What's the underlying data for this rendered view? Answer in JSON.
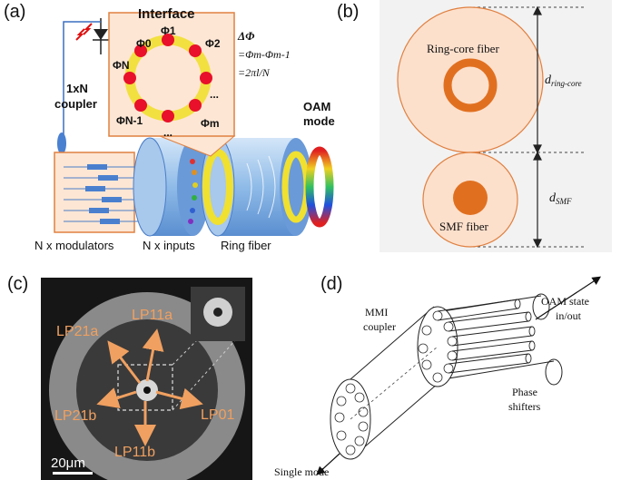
{
  "panels": {
    "a": {
      "label": "(a)",
      "interface_title": "Interface",
      "phases": [
        "Φ0",
        "Φ1",
        "Φ2",
        "ΦN",
        "Φm",
        "ΦN-1"
      ],
      "dots_top": "...",
      "dots_bottom": "...",
      "dots_right": "...",
      "equation_lines": [
        "ΔΦ",
        "=Φm-Φm-1",
        "=2πl/N"
      ],
      "coupler_lines": [
        "1xN",
        "coupler"
      ],
      "oam_lines": [
        "OAM",
        "mode"
      ],
      "bottom_labels": [
        "N x modulators",
        "N x inputs",
        "Ring fiber"
      ]
    },
    "b": {
      "label": "(b)",
      "ring_core_label": "Ring-core fiber",
      "smf_label": "SMF fiber",
      "d_ring_core": "d",
      "d_ring_core_sub": "ring-core",
      "d_smf": "d",
      "d_smf_sub": "SMF"
    },
    "c": {
      "label": "(c)",
      "modes": [
        "LP21a",
        "LP11a",
        "LP21b",
        "LP01",
        "LP11b"
      ],
      "scale_bar": "20μm"
    },
    "d": {
      "label": "(d)",
      "mmi_lines": [
        "MMI",
        "coupler"
      ],
      "oam_lines": [
        "OAM state",
        "in/out"
      ],
      "phase_lines": [
        "Phase",
        "shifters"
      ],
      "single_mode": "Single mode"
    }
  },
  "colors": {
    "ring_fiber_fill": "#fde0cc",
    "ring_core": "#e07020",
    "interface_dot": "#e8102a",
    "interface_ring": "#f2e040",
    "arrow_orange": "#f0a060",
    "cylinder_blue": "#7aaee0"
  }
}
